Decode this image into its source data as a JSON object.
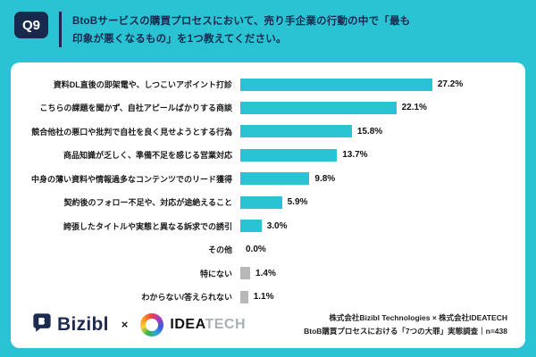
{
  "header": {
    "badge": "Q9",
    "title_line1": "BtoBサービスの購買プロセスにおいて、売り手企業の行動の中で「最も",
    "title_line2": "印象が悪くなるもの」を1つ教えてください。"
  },
  "colors": {
    "background": "#29C3D4",
    "bar": "#29C3D4",
    "bar_muted": "#B8B8B8",
    "navy": "#17294D"
  },
  "chart_data": {
    "type": "bar",
    "orientation": "horizontal",
    "title": "BtoBサービスの購買プロセスにおいて、売り手企業の行動の中で「最も印象が悪くなるもの」を1つ教えてください。",
    "categories": [
      "資料DL直後の即架電や、しつこいアポイント打診",
      "こちらの課題を聞かず、自社アピールばかりする商談",
      "競合他社の悪口や批判で自社を良く見せようとする行為",
      "商品知識が乏しく、準備不足を感じる営業対応",
      "中身の薄い資料や情報過多なコンテンツでのリード獲得",
      "契約後のフォロー不足や、対応が途絶えること",
      "誇張したタイトルや実態と異なる訴求での誘引",
      "その他",
      "特にない",
      "わからない/答えられない"
    ],
    "values": [
      27.2,
      22.1,
      15.8,
      13.7,
      9.8,
      5.9,
      3.0,
      0.0,
      1.4,
      1.1
    ],
    "muted": [
      false,
      false,
      false,
      false,
      false,
      false,
      false,
      false,
      true,
      true
    ],
    "xlim": [
      0,
      30
    ],
    "grid": false,
    "legend": false
  },
  "footer": {
    "bizibl_text": "Bizibl",
    "cross": "×",
    "ideatech_idea": "IDEA",
    "ideatech_tech": "TECH",
    "credit_line1": "株式会社Bizibl Technologies × 株式会社IDEATECH",
    "credit_line2": "BtoB購買プロセスにおける「7つの大罪」実態調査｜n=438"
  }
}
